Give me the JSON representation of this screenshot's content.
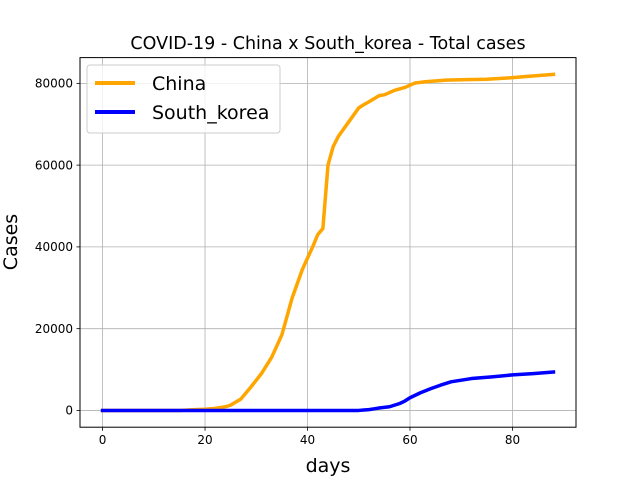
{
  "chart_data": {
    "type": "line",
    "title": "COVID-19 - China x South_korea - Total cases",
    "xlabel": "days",
    "ylabel": "Cases",
    "xlim": [
      -4.4,
      92.4
    ],
    "ylim": [
      -4100,
      86300
    ],
    "xticks": [
      0,
      20,
      40,
      60,
      80
    ],
    "yticks": [
      0,
      20000,
      40000,
      60000,
      80000
    ],
    "grid": true,
    "legend_position": "top-left",
    "series": [
      {
        "name": "China",
        "color": "#ffa500",
        "x": [
          0,
          15,
          18,
          20,
          22,
          24,
          25,
          27,
          29,
          31,
          33,
          35,
          37,
          39,
          41,
          42,
          43,
          44,
          45,
          46,
          48,
          50,
          51,
          52,
          54,
          55,
          57,
          59,
          61,
          63,
          67,
          71,
          75,
          79,
          83,
          88
        ],
        "y": [
          0,
          0,
          200,
          300,
          500,
          900,
          1300,
          2800,
          5800,
          9000,
          13000,
          18500,
          27500,
          34500,
          40000,
          43000,
          44500,
          60000,
          64500,
          67000,
          70500,
          74000,
          74800,
          75500,
          77000,
          77200,
          78300,
          79000,
          80100,
          80400,
          80800,
          80900,
          81000,
          81300,
          81700,
          82200
        ]
      },
      {
        "name": "South_korea",
        "color": "#0000ff",
        "x": [
          0,
          40,
          48,
          50,
          51,
          52,
          53,
          54,
          56,
          57,
          58,
          59,
          60,
          62,
          64,
          66,
          68,
          70,
          72,
          76,
          80,
          84,
          88
        ],
        "y": [
          0,
          0,
          0,
          0,
          100,
          200,
          400,
          600,
          900,
          1300,
          1700,
          2300,
          3100,
          4300,
          5300,
          6200,
          7000,
          7400,
          7800,
          8200,
          8700,
          9000,
          9400
        ]
      }
    ]
  }
}
